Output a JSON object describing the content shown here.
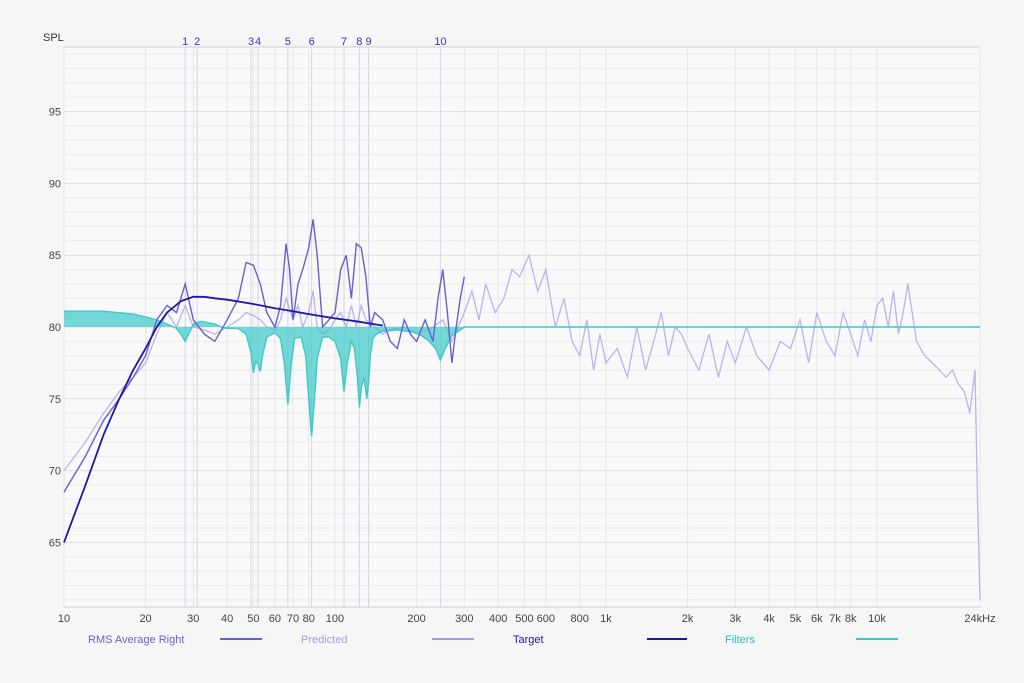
{
  "chart_data": {
    "type": "line",
    "ylabel": "SPL",
    "xunit": "Hz",
    "xscale": "log",
    "xlim": [
      10,
      24000
    ],
    "ylim": [
      60.5,
      99.5
    ],
    "grid": true,
    "y_ticks": [
      65,
      70,
      75,
      80,
      85,
      90,
      95
    ],
    "x_ticks": [
      {
        "v": 10,
        "label": "10"
      },
      {
        "v": 20,
        "label": "20"
      },
      {
        "v": 30,
        "label": "30"
      },
      {
        "v": 40,
        "label": "40"
      },
      {
        "v": 50,
        "label": "50"
      },
      {
        "v": 60,
        "label": "60"
      },
      {
        "v": 70,
        "label": "70"
      },
      {
        "v": 80,
        "label": "80"
      },
      {
        "v": 100,
        "label": "100"
      },
      {
        "v": 200,
        "label": "200"
      },
      {
        "v": 300,
        "label": "300"
      },
      {
        "v": 400,
        "label": "400"
      },
      {
        "v": 500,
        "label": "500"
      },
      {
        "v": 600,
        "label": "600"
      },
      {
        "v": 800,
        "label": "800"
      },
      {
        "v": 1000,
        "label": "1k"
      },
      {
        "v": 2000,
        "label": "2k"
      },
      {
        "v": 3000,
        "label": "3k"
      },
      {
        "v": 4000,
        "label": "4k"
      },
      {
        "v": 5000,
        "label": "5k"
      },
      {
        "v": 6000,
        "label": "6k"
      },
      {
        "v": 7000,
        "label": "7k"
      },
      {
        "v": 8000,
        "label": "8k"
      },
      {
        "v": 10000,
        "label": "10k"
      },
      {
        "v": 24000,
        "label": "24kHz"
      }
    ],
    "filter_markers": [
      {
        "label": "1",
        "freq": 28
      },
      {
        "label": "2",
        "freq": 31
      },
      {
        "label": "3",
        "freq": 49
      },
      {
        "label": "4",
        "freq": 52
      },
      {
        "label": "5",
        "freq": 67
      },
      {
        "label": "6",
        "freq": 82
      },
      {
        "label": "7",
        "freq": 108
      },
      {
        "label": "8",
        "freq": 123
      },
      {
        "label": "9",
        "freq": 133
      },
      {
        "label": "10",
        "freq": 245
      }
    ],
    "legend_position": "bottom",
    "series": [
      {
        "name": "RMS Average Right",
        "color": "#6a5fcf",
        "x": [
          10,
          12,
          14,
          16,
          18,
          20,
          22,
          24,
          26,
          28,
          30,
          33,
          36,
          40,
          44,
          47,
          50,
          53,
          56,
          60,
          63,
          66,
          68,
          70,
          73,
          76,
          80,
          83,
          86,
          90,
          95,
          100,
          105,
          110,
          115,
          120,
          125,
          130,
          135,
          140,
          150,
          160,
          170,
          180,
          190,
          200,
          215,
          230,
          240,
          250,
          260,
          270,
          280,
          290,
          300
        ],
        "y": [
          68.5,
          71.0,
          73.5,
          75.0,
          76.5,
          78.0,
          80.5,
          81.5,
          81.0,
          83.0,
          80.5,
          79.5,
          79.0,
          80.5,
          82.0,
          84.5,
          84.3,
          83.0,
          81.0,
          80.0,
          81.5,
          85.8,
          84.0,
          80.5,
          83.0,
          84.0,
          85.5,
          87.5,
          85.0,
          80.0,
          80.5,
          81.0,
          84.0,
          85.0,
          82.0,
          85.8,
          85.5,
          83.5,
          80.0,
          81.0,
          80.5,
          79.0,
          78.5,
          80.5,
          79.5,
          79.0,
          80.5,
          79.0,
          82.0,
          84.0,
          81.0,
          77.5,
          80.0,
          82.0,
          83.5
        ]
      },
      {
        "name": "Predicted",
        "color": "#a79be8",
        "x": [
          10,
          12,
          14,
          16,
          18,
          20,
          22,
          24,
          26,
          28,
          30,
          33,
          36,
          40,
          44,
          47,
          50,
          53,
          56,
          60,
          63,
          66,
          70,
          73,
          76,
          80,
          83,
          86,
          90,
          95,
          100,
          105,
          110,
          115,
          120,
          125,
          130,
          140,
          150,
          160,
          180,
          200,
          230,
          250,
          270,
          300,
          320,
          340,
          360,
          390,
          420,
          450,
          480,
          520,
          560,
          600,
          650,
          700,
          750,
          800,
          850,
          900,
          950,
          1000,
          1100,
          1200,
          1300,
          1400,
          1500,
          1600,
          1700,
          1800,
          1900,
          2000,
          2200,
          2400,
          2600,
          2800,
          3000,
          3300,
          3600,
          4000,
          4400,
          4800,
          5200,
          5600,
          6000,
          6500,
          7000,
          7500,
          8000,
          8500,
          9000,
          9500,
          10000,
          10500,
          11000,
          11500,
          12000,
          12500,
          13000,
          14000,
          15000,
          16000,
          17000,
          18000,
          19000,
          20000,
          21000,
          22000,
          23000,
          23500,
          24000
        ],
        "y": [
          70.0,
          72.0,
          74.0,
          75.5,
          76.5,
          77.5,
          79.5,
          81.0,
          80.0,
          81.5,
          80.0,
          79.8,
          79.5,
          80.0,
          80.5,
          81.0,
          80.8,
          80.5,
          80.0,
          79.8,
          80.5,
          82.0,
          80.5,
          81.5,
          80.0,
          81.0,
          82.5,
          80.0,
          79.5,
          79.8,
          80.5,
          81.0,
          80.0,
          81.5,
          80.0,
          81.5,
          80.5,
          80.0,
          79.5,
          79.8,
          80.0,
          79.5,
          80.0,
          80.5,
          79.0,
          81.0,
          82.5,
          80.5,
          83.0,
          81.0,
          82.0,
          84.0,
          83.5,
          85.0,
          82.5,
          84.0,
          80.0,
          82.0,
          79.0,
          78.0,
          80.5,
          77.0,
          79.5,
          77.5,
          78.5,
          76.5,
          80.0,
          77.0,
          79.0,
          81.0,
          78.0,
          80.0,
          79.5,
          78.5,
          77.0,
          79.5,
          76.5,
          79.0,
          77.5,
          80.0,
          78.0,
          77.0,
          79.0,
          78.5,
          80.5,
          77.5,
          81.0,
          79.0,
          78.0,
          81.0,
          79.5,
          78.0,
          80.5,
          79.0,
          81.5,
          82.0,
          80.0,
          82.5,
          79.5,
          81.0,
          83.0,
          79.0,
          78.0,
          77.5,
          77.0,
          76.5,
          77.0,
          76.0,
          75.5,
          74.0,
          77.0,
          68.0,
          61.0
        ]
      },
      {
        "name": "Target",
        "color": "#1d17a8",
        "x": [
          10,
          12,
          14,
          16,
          18,
          20,
          22,
          24,
          27,
          30,
          33,
          36,
          40,
          50,
          60,
          70,
          80,
          100,
          120,
          150
        ],
        "y": [
          65.0,
          69.0,
          72.5,
          75.0,
          77.0,
          78.5,
          80.0,
          81.0,
          81.8,
          82.1,
          82.1,
          82.0,
          81.9,
          81.6,
          81.3,
          81.1,
          80.9,
          80.6,
          80.4,
          80.1
        ]
      },
      {
        "name": "Filters",
        "color": "#3cc9c9",
        "x": [
          10,
          14,
          18,
          20,
          22,
          24,
          26,
          27,
          28,
          29,
          30,
          32,
          34,
          36,
          38,
          40,
          44,
          47,
          49,
          50,
          51,
          52,
          53,
          54,
          56,
          60,
          63,
          65,
          67,
          69,
          71,
          75,
          78,
          80,
          82,
          84,
          86,
          90,
          95,
          100,
          105,
          108,
          111,
          115,
          118,
          121,
          123,
          125,
          128,
          131,
          133,
          135,
          138,
          142,
          150,
          170,
          200,
          220,
          235,
          245,
          255,
          270,
          290,
          300,
          24000
        ],
        "y": [
          81.1,
          81.1,
          80.9,
          80.7,
          80.5,
          80.2,
          79.9,
          79.5,
          79.0,
          79.6,
          80.2,
          80.4,
          80.3,
          80.2,
          80.0,
          79.9,
          79.9,
          79.5,
          78.2,
          76.8,
          77.6,
          77.4,
          76.9,
          78.0,
          79.3,
          79.6,
          79.2,
          77.5,
          74.6,
          77.5,
          79.2,
          79.3,
          78.0,
          75.0,
          72.4,
          75.0,
          77.8,
          79.3,
          79.3,
          79.0,
          77.8,
          75.5,
          77.5,
          79.0,
          78.5,
          76.5,
          74.4,
          75.8,
          76.5,
          75.0,
          76.2,
          78.0,
          79.2,
          79.5,
          79.7,
          79.8,
          79.6,
          79.1,
          78.5,
          77.7,
          78.5,
          79.4,
          79.8,
          80.0,
          80.0
        ]
      }
    ]
  }
}
